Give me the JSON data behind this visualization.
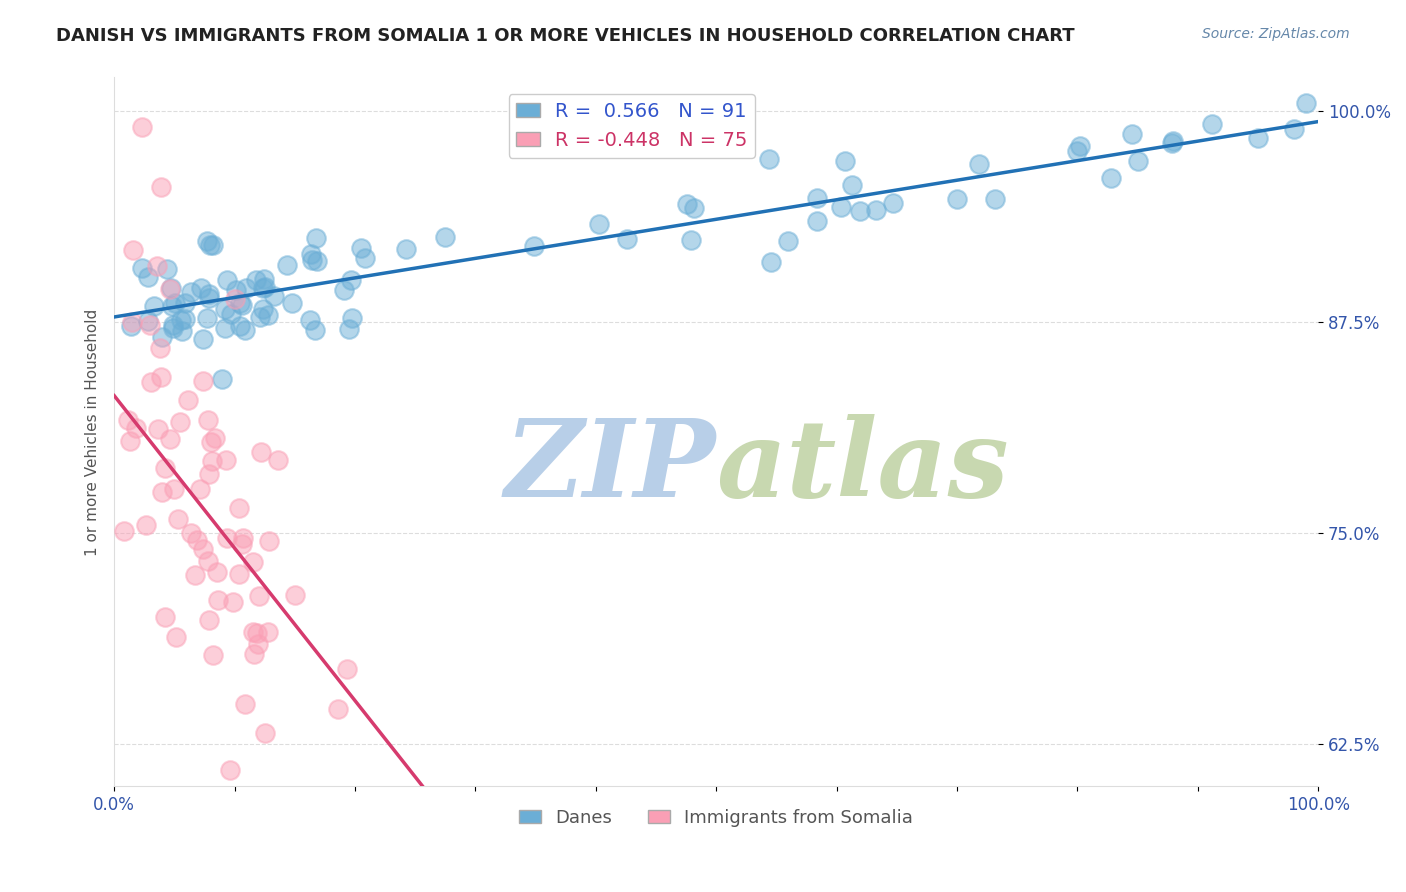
{
  "title": "DANISH VS IMMIGRANTS FROM SOMALIA 1 OR MORE VEHICLES IN HOUSEHOLD CORRELATION CHART",
  "source": "Source: ZipAtlas.com",
  "ylabel": "1 or more Vehicles in Household",
  "xlabel_danes": "Danes",
  "xlabel_somalia": "Immigrants from Somalia",
  "xlim": [
    0.0,
    1.0
  ],
  "ylim": [
    0.6,
    1.02
  ],
  "yticks": [
    0.625,
    0.75,
    0.875,
    1.0
  ],
  "ytick_labels": [
    "62.5%",
    "75.0%",
    "87.5%",
    "100.0%"
  ],
  "R_danes": 0.566,
  "N_danes": 91,
  "R_somalia": -0.448,
  "N_somalia": 75,
  "color_danes": "#6baed6",
  "color_somalia": "#fa9fb5",
  "color_danes_line": "#2171b5",
  "color_somalia_line": "#d63b6e",
  "color_trend_dashed": "#cccccc",
  "watermark_zip": "ZIP",
  "watermark_atlas": "atlas",
  "watermark_color_zip": "#b8cfe8",
  "watermark_color_atlas": "#c8d8b0",
  "title_fontsize": 13,
  "axis_label_fontsize": 11,
  "legend_fontsize": 14,
  "background_color": "#ffffff"
}
